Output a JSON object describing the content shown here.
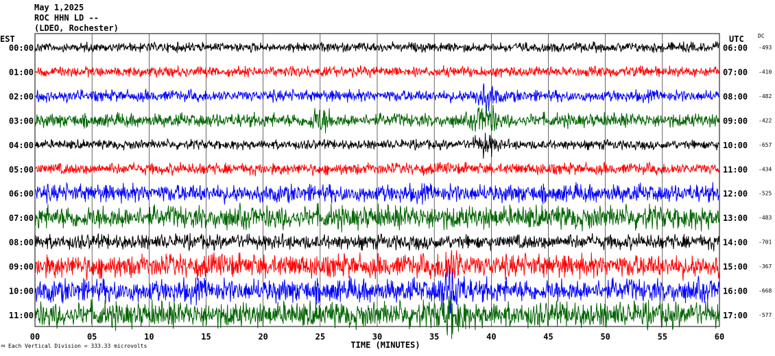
{
  "header": {
    "date": "May 1,2025",
    "station": "ROC HHN LD --",
    "network": "(LDEO, Rochester)"
  },
  "left_timezone": "EST",
  "right_timezone": "UTC",
  "dc_label": "DC",
  "footer": {
    "mark": "ᴊᴍ",
    "note": "Each Vertical Division = 333.33 microvolts"
  },
  "colors": {
    "trace_cycle": [
      "#000000",
      "#ff0000",
      "#0000ff",
      "#006400"
    ]
  },
  "chart_data": {
    "type": "line",
    "xlabel": "TIME (MINUTES)",
    "xlim": [
      0,
      60
    ],
    "xticks": [
      "00",
      "05",
      "10",
      "15",
      "20",
      "25",
      "30",
      "35",
      "40",
      "45",
      "50",
      "55",
      "60"
    ],
    "rows": [
      {
        "est": "00:00",
        "utc": "06:00",
        "dc": "-493",
        "color": "#000000",
        "amp": 9,
        "noise": "low"
      },
      {
        "est": "01:00",
        "utc": "07:00",
        "dc": "-410",
        "color": "#ff0000",
        "amp": 10,
        "noise": "low"
      },
      {
        "est": "02:00",
        "utc": "08:00",
        "dc": "-482",
        "color": "#0000ff",
        "amp": 11,
        "noise": "low"
      },
      {
        "est": "03:00",
        "utc": "09:00",
        "dc": "-422",
        "color": "#006400",
        "amp": 13,
        "noise": "medium"
      },
      {
        "est": "04:00",
        "utc": "10:00",
        "dc": "-657",
        "color": "#000000",
        "amp": 9,
        "noise": "low"
      },
      {
        "est": "05:00",
        "utc": "11:00",
        "dc": "-434",
        "color": "#ff0000",
        "amp": 11,
        "noise": "low"
      },
      {
        "est": "06:00",
        "utc": "12:00",
        "dc": "-525",
        "color": "#0000ff",
        "amp": 17,
        "noise": "medium"
      },
      {
        "est": "07:00",
        "utc": "13:00",
        "dc": "-483",
        "color": "#006400",
        "amp": 22,
        "noise": "high"
      },
      {
        "est": "08:00",
        "utc": "14:00",
        "dc": "-701",
        "color": "#000000",
        "amp": 14,
        "noise": "medium"
      },
      {
        "est": "09:00",
        "utc": "15:00",
        "dc": "-367",
        "color": "#ff0000",
        "amp": 22,
        "noise": "high"
      },
      {
        "est": "10:00",
        "utc": "16:00",
        "dc": "-668",
        "color": "#0000ff",
        "amp": 22,
        "noise": "high"
      },
      {
        "est": "11:00",
        "utc": "17:00",
        "dc": "-577",
        "color": "#006400",
        "amp": 24,
        "noise": "high"
      }
    ],
    "events": [
      {
        "row": 2,
        "minute": 39.5,
        "amp": 3
      },
      {
        "row": 3,
        "minute": 25,
        "amp": 2.5
      },
      {
        "row": 3,
        "minute": 39.5,
        "amp": 3
      },
      {
        "row": 4,
        "minute": 39.5,
        "amp": 3
      },
      {
        "row": 9,
        "minute": 36.5,
        "amp": 2
      },
      {
        "row": 10,
        "minute": 36.5,
        "amp": 2.5
      },
      {
        "row": 11,
        "minute": 36.5,
        "amp": 2
      }
    ]
  }
}
